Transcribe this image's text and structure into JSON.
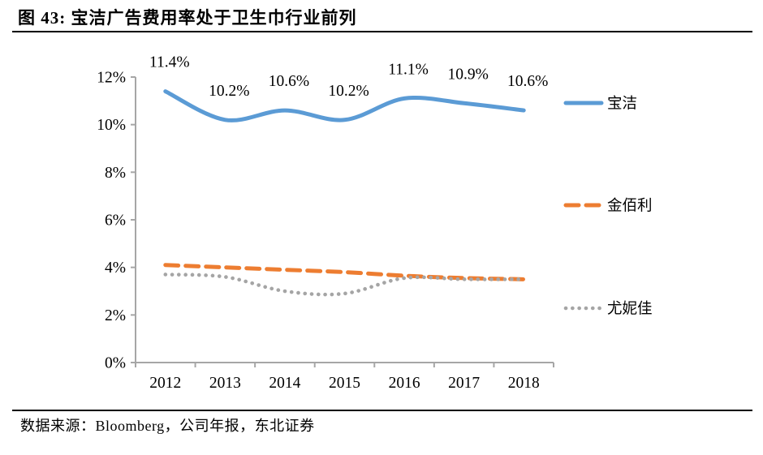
{
  "figure": {
    "title": "图 43: 宝洁广告费用率处于卫生巾行业前列",
    "source": "数据来源：Bloomberg，公司年报，东北证券"
  },
  "colors": {
    "pg_blue": "#5B9BD5",
    "kimberly_orange": "#ED7D31",
    "unicharm_gray": "#A5A5A5",
    "axis_gray": "#A6A6A6",
    "rule_black": "#000000"
  },
  "chart_data": {
    "type": "line",
    "categories": [
      "2012",
      "2013",
      "2014",
      "2015",
      "2016",
      "2017",
      "2018"
    ],
    "series": [
      {
        "key": "pg",
        "name": "宝洁",
        "color": "#5B9BD5",
        "style": "solid",
        "values": [
          11.4,
          10.2,
          10.6,
          10.2,
          11.1,
          10.9,
          10.6
        ],
        "point_labels": [
          "11.4%",
          "10.2%",
          "10.6%",
          "10.2%",
          "11.1%",
          "10.9%",
          "10.6%"
        ]
      },
      {
        "key": "kimberly",
        "name": "金佰利",
        "color": "#ED7D31",
        "style": "dashed",
        "values": [
          4.1,
          4.0,
          3.9,
          3.8,
          3.65,
          3.55,
          3.5
        ],
        "point_labels": []
      },
      {
        "key": "unicharm",
        "name": "尤妮佳",
        "color": "#A5A5A5",
        "style": "dotted",
        "values": [
          3.7,
          3.6,
          3.0,
          2.9,
          3.55,
          3.5,
          3.5
        ],
        "point_labels": []
      }
    ],
    "ylim": [
      0,
      12
    ],
    "ytick_labels": [
      "0%",
      "2%",
      "4%",
      "6%",
      "8%",
      "10%",
      "12%"
    ],
    "xlabel": "",
    "ylabel": "",
    "grid": false,
    "legend_position": "right"
  }
}
